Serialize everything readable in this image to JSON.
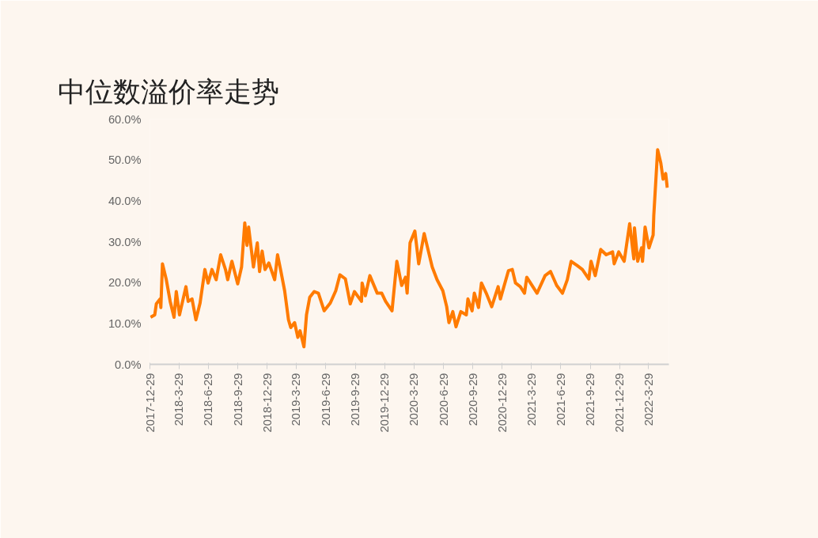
{
  "chart_data": {
    "type": "line",
    "title": "中位数溢价率走势",
    "x": [
      "2017-12-31",
      "2018-01-13",
      "2018-01-18",
      "2018-01-30",
      "2018-02-01",
      "2018-02-06",
      "2018-02-18",
      "2018-03-02",
      "2018-03-14",
      "2018-03-21",
      "2018-03-31",
      "2018-04-20",
      "2018-04-27",
      "2018-05-09",
      "2018-05-21",
      "2018-06-03",
      "2018-06-18",
      "2018-06-28",
      "2018-07-10",
      "2018-07-23",
      "2018-08-06",
      "2018-08-21",
      "2018-08-28",
      "2018-09-10",
      "2018-09-28",
      "2018-10-10",
      "2018-10-20",
      "2018-10-27",
      "2018-11-01",
      "2018-11-16",
      "2018-11-28",
      "2018-12-05",
      "2018-12-13",
      "2018-12-22",
      "2019-01-03",
      "2019-01-21",
      "2019-01-30",
      "2019-02-09",
      "2019-02-21",
      "2019-03-05",
      "2019-03-12",
      "2019-03-24",
      "2019-04-03",
      "2019-04-10",
      "2019-04-22",
      "2019-04-30",
      "2019-05-10",
      "2019-05-24",
      "2019-06-06",
      "2019-06-24",
      "2019-07-13",
      "2019-07-30",
      "2019-08-12",
      "2019-08-29",
      "2019-09-13",
      "2019-09-26",
      "2019-10-18",
      "2019-10-20",
      "2019-10-30",
      "2019-11-13",
      "2019-12-06",
      "2019-12-20",
      "2020-01-01",
      "2020-01-21",
      "2020-02-05",
      "2020-02-20",
      "2020-03-03",
      "2020-03-08",
      "2020-03-17",
      "2020-04-01",
      "2020-04-13",
      "2020-04-30",
      "2020-05-13",
      "2020-05-25",
      "2020-06-09",
      "2020-06-27",
      "2020-07-09",
      "2020-07-16",
      "2020-07-28",
      "2020-08-07",
      "2020-08-22",
      "2020-09-08",
      "2020-09-13",
      "2020-09-26",
      "2020-10-03",
      "2020-10-16",
      "2020-10-25",
      "2020-11-09",
      "2020-11-26",
      "2020-12-16",
      "2020-12-23",
      "2021-01-17",
      "2021-01-29",
      "2021-02-08",
      "2021-02-23",
      "2021-03-08",
      "2021-03-15",
      "2021-04-16",
      "2021-05-11",
      "2021-05-28",
      "2021-06-16",
      "2021-07-04",
      "2021-07-19",
      "2021-07-31",
      "2021-08-18",
      "2021-09-04",
      "2021-09-24",
      "2021-10-01",
      "2021-10-14",
      "2021-10-31",
      "2021-11-17",
      "2021-12-07",
      "2021-12-12",
      "2021-12-26",
      "2022-01-12",
      "2022-01-29",
      "2022-02-11",
      "2022-02-13",
      "2022-02-23",
      "2022-03-07",
      "2022-03-10",
      "2022-03-18",
      "2022-03-30",
      "2022-04-12",
      "2022-04-14",
      "2022-04-26",
      "2022-05-06",
      "2022-05-13",
      "2022-05-21",
      "2022-05-26"
    ],
    "series": [
      {
        "color": "#ff7b00",
        "values": [
          11.5,
          12.1,
          14.8,
          16.0,
          13.9,
          24.6,
          20.7,
          15.4,
          11.5,
          17.8,
          12.1,
          19.0,
          15.4,
          16.0,
          10.9,
          15.0,
          23.2,
          19.9,
          23.2,
          20.7,
          26.8,
          23.2,
          20.7,
          25.2,
          19.7,
          23.8,
          34.6,
          29.1,
          33.6,
          23.8,
          29.7,
          22.7,
          27.7,
          23.2,
          24.8,
          20.7,
          26.8,
          22.9,
          18.0,
          10.9,
          9.0,
          10.2,
          6.6,
          8.2,
          4.3,
          12.1,
          16.4,
          17.8,
          17.4,
          13.1,
          15.0,
          18.0,
          21.9,
          20.9,
          14.8,
          17.8,
          15.4,
          19.9,
          16.8,
          21.7,
          17.4,
          17.4,
          15.4,
          13.1,
          25.2,
          19.3,
          21.3,
          17.4,
          29.7,
          32.6,
          24.6,
          32.0,
          27.7,
          23.8,
          20.7,
          18.0,
          14.1,
          10.2,
          12.9,
          9.2,
          12.9,
          12.1,
          16.0,
          13.1,
          17.4,
          13.9,
          19.9,
          17.4,
          14.1,
          19.0,
          16.0,
          22.9,
          23.2,
          19.9,
          19.0,
          17.4,
          21.3,
          17.4,
          21.7,
          22.7,
          19.3,
          17.4,
          20.7,
          25.2,
          24.2,
          23.2,
          20.9,
          25.2,
          21.7,
          28.1,
          26.8,
          27.5,
          24.6,
          27.5,
          25.2,
          34.4,
          25.8,
          33.4,
          25.2,
          28.5,
          25.2,
          33.6,
          28.5,
          31.6,
          36.3,
          52.5,
          49.2,
          45.3,
          46.7,
          43.2
        ]
      }
    ],
    "xlim": [
      "2017-12-29",
      "2022-05-31"
    ],
    "xticks": [
      {
        "value": "2017-12-29",
        "label": "2017-12-29"
      },
      {
        "value": "2018-03-29",
        "label": "2018-3-29"
      },
      {
        "value": "2018-06-29",
        "label": "2018-6-29"
      },
      {
        "value": "2018-09-29",
        "label": "2018-9-29"
      },
      {
        "value": "2018-12-29",
        "label": "2018-12-29"
      },
      {
        "value": "2019-03-29",
        "label": "2019-3-29"
      },
      {
        "value": "2019-06-29",
        "label": "2019-6-29"
      },
      {
        "value": "2019-09-29",
        "label": "2019-9-29"
      },
      {
        "value": "2019-12-29",
        "label": "2019-12-29"
      },
      {
        "value": "2020-03-29",
        "label": "2020-3-29"
      },
      {
        "value": "2020-06-29",
        "label": "2020-6-29"
      },
      {
        "value": "2020-09-29",
        "label": "2020-9-29"
      },
      {
        "value": "2020-12-29",
        "label": "2020-12-29"
      },
      {
        "value": "2021-03-29",
        "label": "2021-3-29"
      },
      {
        "value": "2021-06-29",
        "label": "2021-6-29"
      },
      {
        "value": "2021-09-29",
        "label": "2021-9-29"
      },
      {
        "value": "2021-12-29",
        "label": "2021-12-29"
      },
      {
        "value": "2022-03-29",
        "label": "2022-3-29"
      }
    ],
    "ylim": [
      0,
      60
    ],
    "yticks": [
      {
        "value": 0,
        "label": "0.0%"
      },
      {
        "value": 10,
        "label": "10.0%"
      },
      {
        "value": 20,
        "label": "20.0%"
      },
      {
        "value": 30,
        "label": "30.0%"
      },
      {
        "value": 40,
        "label": "40.0%"
      },
      {
        "value": 50,
        "label": "50.0%"
      },
      {
        "value": 60,
        "label": "60.0%"
      }
    ],
    "grid": false,
    "marker": "none",
    "line_style": "solid"
  }
}
